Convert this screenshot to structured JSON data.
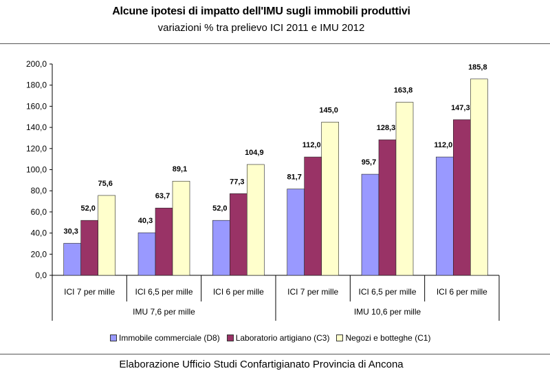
{
  "chart_data": {
    "type": "bar",
    "title": "Alcune ipotesi di impatto dell'IMU sugli immobili produttivi",
    "subtitle": "variazioni % tra prelievo ICI 2011 e IMU 2012",
    "categories": [
      "ICI 7 per mille",
      "ICI 6,5 per mille",
      "ICI 6 per mille",
      "ICI 7 per mille",
      "ICI 6,5 per mille",
      "ICI 6 per mille"
    ],
    "groups": [
      {
        "label": "IMU 7,6 per mille",
        "span": [
          0,
          2
        ]
      },
      {
        "label": "IMU 10,6 per mille",
        "span": [
          3,
          5
        ]
      }
    ],
    "series": [
      {
        "name": "Immobile commerciale (D8)",
        "color": "#9999ff",
        "values": [
          30.3,
          40.3,
          52.0,
          81.7,
          95.7,
          112.0
        ],
        "labels": [
          "30,3",
          "40,3",
          "52,0",
          "81,7",
          "95,7",
          "112,0"
        ]
      },
      {
        "name": "Laboratorio artigiano (C3)",
        "color": "#993366",
        "values": [
          52.0,
          63.7,
          77.3,
          112.0,
          128.3,
          147.3
        ],
        "labels": [
          "52,0",
          "63,7",
          "77,3",
          "112,0",
          "128,3",
          "147,3"
        ]
      },
      {
        "name": "Negozi e botteghe (C1)",
        "color": "#ffffcc",
        "values": [
          75.6,
          89.1,
          104.9,
          145.0,
          163.8,
          185.8
        ],
        "labels": [
          "75,6",
          "89,1",
          "104,9",
          "145,0",
          "163,8",
          "185,8"
        ]
      }
    ],
    "ylim": [
      0,
      200
    ],
    "yticks": [
      0,
      20,
      40,
      60,
      80,
      100,
      120,
      140,
      160,
      180,
      200
    ],
    "ytick_labels": [
      "0,0",
      "20,0",
      "40,0",
      "60,0",
      "80,0",
      "100,0",
      "120,0",
      "140,0",
      "160,0",
      "180,0",
      "200,0"
    ],
    "grid": false,
    "legend_position": "bottom"
  },
  "footer": "Elaborazione Ufficio Studi Confartigianato Provincia di Ancona"
}
